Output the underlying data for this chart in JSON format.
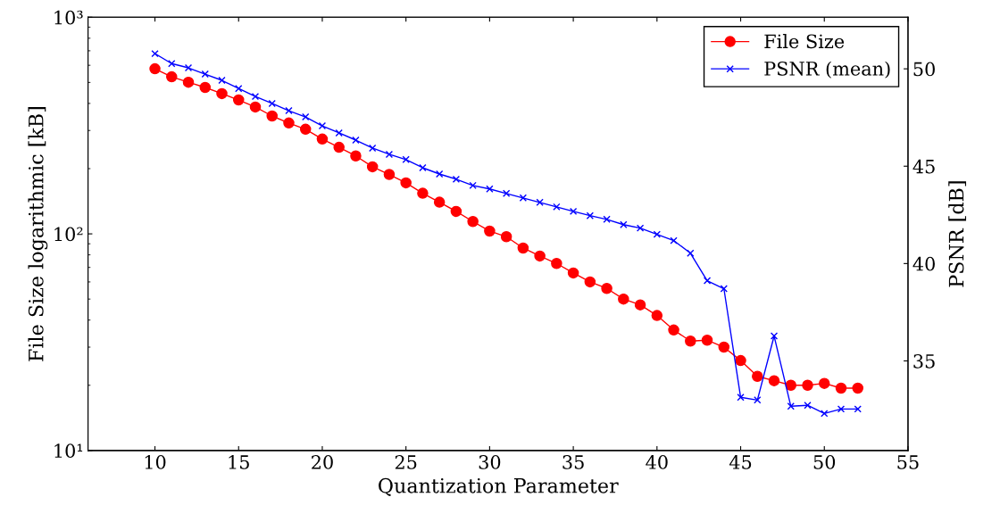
{
  "chart_data": {
    "type": "line",
    "xlabel": "Quantization Parameter",
    "ylabel": "File Size logarithmic [kB]",
    "y2label": "PSNR [dB]",
    "x": [
      10,
      11,
      12,
      13,
      14,
      15,
      16,
      17,
      18,
      19,
      20,
      21,
      22,
      23,
      24,
      25,
      26,
      27,
      28,
      29,
      30,
      31,
      32,
      33,
      34,
      35,
      36,
      37,
      38,
      39,
      40,
      41,
      42,
      43,
      44,
      45,
      46,
      47,
      48,
      49,
      50,
      51,
      52
    ],
    "series": [
      {
        "name": "File Size",
        "color": "#ff0000",
        "marker": "circle",
        "values": [
          578,
          531,
          501,
          474,
          444,
          415,
          385,
          350,
          325,
          304,
          274,
          251,
          229,
          204,
          188,
          172,
          154,
          140,
          127,
          114,
          103,
          97,
          86,
          79,
          73,
          66,
          60,
          56,
          50,
          47,
          42,
          36,
          32,
          32.3,
          30,
          26,
          22,
          21,
          20,
          20,
          20.4,
          19.4,
          19.4
        ]
      },
      {
        "name": "PSNR (mean)",
        "color": "#0000ff",
        "marker": "cross",
        "axis": "y2",
        "values": [
          50.78,
          50.27,
          50.05,
          49.73,
          49.41,
          48.99,
          48.58,
          48.22,
          47.85,
          47.53,
          47.07,
          46.71,
          46.34,
          45.93,
          45.61,
          45.34,
          44.92,
          44.6,
          44.33,
          44.01,
          43.83,
          43.6,
          43.37,
          43.14,
          42.91,
          42.68,
          42.46,
          42.27,
          42.0,
          41.82,
          41.5,
          41.18,
          40.53,
          39.12,
          38.71,
          33.13,
          32.99,
          36.28,
          32.67,
          32.72,
          32.3,
          32.53,
          32.53
        ]
      }
    ],
    "log": "y",
    "xlim": [
      6,
      55
    ],
    "xticks": [
      10,
      15,
      20,
      25,
      30,
      35,
      40,
      45,
      50,
      55
    ],
    "ylim": [
      10,
      1000
    ],
    "yticks": [
      {
        "value": 10,
        "label": "10¹"
      },
      {
        "value": 100,
        "label": "10²"
      },
      {
        "value": 1000,
        "label": "10³"
      }
    ],
    "y2lim": [
      30.4,
      52.65
    ],
    "y2ticks": [
      35,
      40,
      45,
      50
    ],
    "grid": false,
    "legend": "top right"
  }
}
